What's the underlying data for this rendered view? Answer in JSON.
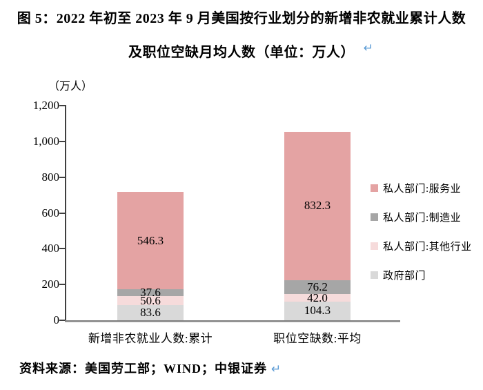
{
  "figure": {
    "title_line1": "图 5：2022 年初至 2023 年 9 月美国按行业划分的新增非农就业累计人数",
    "title_line2": "及职位空缺月均人数（单位：万人）",
    "return_mark": "↵",
    "source_text": "资料来源：美国劳工部；WIND；中银证券"
  },
  "chart_data": {
    "type": "bar",
    "stacked": true,
    "grid": false,
    "unit_label": "（万人）",
    "title": "2022年初至2023年9月美国按行业划分的新增非农就业累计人数及职位空缺月均人数（单位：万人）",
    "categories": [
      "新增非农就业人数:累计",
      "职位空缺数:平均"
    ],
    "series": [
      {
        "name": "政府部门",
        "color": "#D9D9D9",
        "values": [
          83.6,
          104.3
        ],
        "labels": [
          "83.6",
          "104.3"
        ]
      },
      {
        "name": "私人部门:其他行业",
        "color": "#F6DBDB",
        "values": [
          50.6,
          42.0
        ],
        "labels": [
          "50.6",
          "42.0"
        ]
      },
      {
        "name": "私人部门:制造业",
        "color": "#A6A6A6",
        "values": [
          37.6,
          76.2
        ],
        "labels": [
          "37.6",
          "76.2"
        ]
      },
      {
        "name": "私人部门:服务业",
        "color": "#E4A3A3",
        "values": [
          546.3,
          832.3
        ],
        "labels": [
          "546.3",
          "832.3"
        ]
      }
    ],
    "legend": [
      {
        "label": "私人部门:服务业",
        "color": "#E4A3A3"
      },
      {
        "label": "私人部门:制造业",
        "color": "#A6A6A6"
      },
      {
        "label": "私人部门:其他行业",
        "color": "#F6DBDB"
      },
      {
        "label": "政府部门",
        "color": "#D9D9D9"
      }
    ],
    "legend_position": "right",
    "ylim": [
      0,
      1200
    ],
    "yticks": [
      {
        "value": 0,
        "label": "0"
      },
      {
        "value": 200,
        "label": "200"
      },
      {
        "value": 400,
        "label": "400"
      },
      {
        "value": 600,
        "label": "600"
      },
      {
        "value": 800,
        "label": "800"
      },
      {
        "value": 1000,
        "label": "1,000"
      },
      {
        "value": 1200,
        "label": "1,200"
      }
    ],
    "colors": {
      "axis": "#404040",
      "baseline": "#7F7F7F",
      "return_mark": "#5B9BD5"
    }
  }
}
